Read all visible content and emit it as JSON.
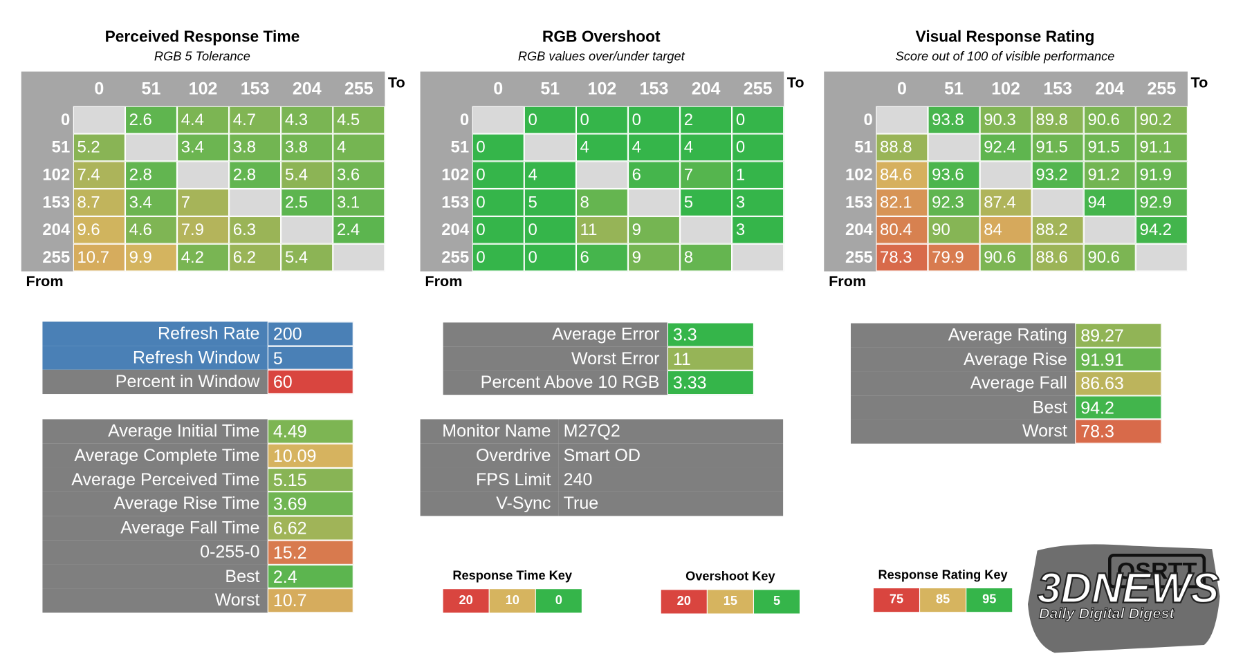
{
  "heatmaps": [
    {
      "title": "Perceived Response Time",
      "subtitle": "RGB 5 Tolerance",
      "to_label": "To",
      "from_label": "From",
      "columns": [
        0,
        51,
        102,
        153,
        204,
        255
      ],
      "rows": [
        {
          "label": 0,
          "values": [
            null,
            2.6,
            4.4,
            4.7,
            4.3,
            4.5
          ]
        },
        {
          "label": 51,
          "values": [
            5.2,
            null,
            3.4,
            3.8,
            3.8,
            4
          ]
        },
        {
          "label": 102,
          "values": [
            7.4,
            2.8,
            null,
            2.8,
            5.4,
            3.6
          ]
        },
        {
          "label": 153,
          "values": [
            8.7,
            3.4,
            7,
            null,
            2.5,
            3.1
          ]
        },
        {
          "label": 204,
          "values": [
            9.6,
            4.6,
            7.9,
            6.3,
            null,
            2.4
          ]
        },
        {
          "label": 255,
          "values": [
            10.7,
            9.9,
            4.2,
            6.2,
            5.4,
            null
          ]
        }
      ]
    },
    {
      "title": "RGB Overshoot",
      "subtitle": "RGB values over/under target",
      "to_label": "To",
      "from_label": "From",
      "columns": [
        0,
        51,
        102,
        153,
        204,
        255
      ],
      "rows": [
        {
          "label": 0,
          "values": [
            null,
            0,
            0,
            0,
            2,
            0
          ]
        },
        {
          "label": 51,
          "values": [
            0,
            null,
            4,
            4,
            4,
            0
          ]
        },
        {
          "label": 102,
          "values": [
            0,
            4,
            null,
            6,
            7,
            1
          ]
        },
        {
          "label": 153,
          "values": [
            0,
            5,
            8,
            null,
            5,
            3
          ]
        },
        {
          "label": 204,
          "values": [
            0,
            0,
            11,
            9,
            null,
            3
          ]
        },
        {
          "label": 255,
          "values": [
            0,
            0,
            6,
            9,
            8,
            null
          ]
        }
      ]
    },
    {
      "title": "Visual Response Rating",
      "subtitle": "Score out of 100 of visible performance",
      "to_label": "To",
      "from_label": "From",
      "columns": [
        0,
        51,
        102,
        153,
        204,
        255
      ],
      "rows": [
        {
          "label": 0,
          "values": [
            null,
            93.8,
            90.3,
            89.8,
            90.6,
            90.2
          ]
        },
        {
          "label": 51,
          "values": [
            88.8,
            null,
            92.4,
            91.5,
            91.5,
            91.1
          ]
        },
        {
          "label": 102,
          "values": [
            84.6,
            93.6,
            null,
            93.2,
            91.2,
            91.9
          ]
        },
        {
          "label": 153,
          "values": [
            82.1,
            92.3,
            87.4,
            null,
            94,
            92.9
          ]
        },
        {
          "label": 204,
          "values": [
            80.4,
            90,
            84,
            88.2,
            null,
            94.2
          ]
        },
        {
          "label": 255,
          "values": [
            78.3,
            79.9,
            90.6,
            88.6,
            90.6,
            null
          ]
        }
      ]
    }
  ],
  "refresh": {
    "rows": [
      {
        "label": "Refresh Rate",
        "value": 200
      },
      {
        "label": "Refresh Window",
        "value": 5
      },
      {
        "label": "Percent in Window",
        "value": 60
      }
    ]
  },
  "times": {
    "rows": [
      {
        "label": "Average Initial Time",
        "value": 4.49
      },
      {
        "label": "Average Complete Time",
        "value": 10.09
      },
      {
        "label": "Average Perceived Time",
        "value": 5.15
      },
      {
        "label": "Average Rise Time",
        "value": 3.69
      },
      {
        "label": "Average Fall Time",
        "value": 6.62
      },
      {
        "label": "0-255-0",
        "value": 15.2
      },
      {
        "label": "Best",
        "value": 2.4
      },
      {
        "label": "Worst",
        "value": 10.7
      }
    ]
  },
  "overshoot_stats": {
    "rows": [
      {
        "label": "Average Error",
        "value": 3.3
      },
      {
        "label": "Worst Error",
        "value": 11
      },
      {
        "label": "Percent Above 10 RGB",
        "value": 3.33
      }
    ]
  },
  "monitor": {
    "rows": [
      {
        "label": "Monitor Name",
        "value": "M27Q2"
      },
      {
        "label": "Overdrive",
        "value": "Smart OD"
      },
      {
        "label": "FPS Limit",
        "value": 240
      },
      {
        "label": "V-Sync",
        "value": "True"
      }
    ]
  },
  "rating_stats": {
    "rows": [
      {
        "label": "Average Rating",
        "value": 89.27
      },
      {
        "label": "Average Rise",
        "value": 91.91
      },
      {
        "label": "Average Fall",
        "value": 86.63
      },
      {
        "label": "Best",
        "value": 94.2
      },
      {
        "label": "Worst",
        "value": 78.3
      }
    ]
  },
  "keys": [
    {
      "title": "Response Time Key",
      "values": [
        20,
        10,
        0
      ],
      "colors": [
        "#d9453f",
        "#d6b45f",
        "#35b54a"
      ]
    },
    {
      "title": "Overshoot Key",
      "values": [
        20,
        15,
        5
      ],
      "colors": [
        "#d9453f",
        "#d6b45f",
        "#35b54a"
      ]
    },
    {
      "title": "Response Rating Key",
      "values": [
        75,
        85,
        95
      ],
      "colors": [
        "#d9453f",
        "#d6b45f",
        "#35b54a"
      ]
    }
  ],
  "watermark": {
    "logo": "OSRTT",
    "brand": "3DNEWS",
    "tagline": "Daily Digital Digest"
  }
}
